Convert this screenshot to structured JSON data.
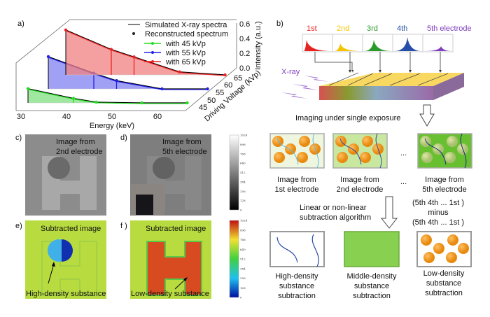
{
  "panel_labels": {
    "a": "a)",
    "b": "b)",
    "c": "c)",
    "d": "d)",
    "e": "e)",
    "f": "f )"
  },
  "chart_data": {
    "type": "line",
    "xlabel": "Energy (keV)",
    "ylabel": "Intensity (a.u.)",
    "zlabel": "Driving Voltage (kVp)",
    "x_ticks": [
      "30",
      "40",
      "50",
      "60"
    ],
    "y_ticks": [
      "0.0",
      "0.2",
      "0.4",
      "0.6"
    ],
    "z_ticks": [
      "45",
      "50",
      "55",
      "60",
      "65"
    ],
    "xlim": [
      30,
      65
    ],
    "ylim": [
      0,
      0.6
    ],
    "legend": {
      "placement": "top-right",
      "entries": [
        "Simulated X-ray spectra",
        "Reconstructed spectrum",
        "with 45 kVp",
        "with 55 kVp",
        "with 65 kVp"
      ]
    },
    "series": [
      {
        "name": "with 45 kVp",
        "color": "#22dd22",
        "x": [
          32,
          42,
          47,
          57,
          67
        ],
        "y": [
          0.19,
          0.06,
          0.01,
          0.0,
          0.0
        ]
      },
      {
        "name": "with 55 kVp",
        "color": "#2222ee",
        "x": [
          32,
          42,
          47,
          57,
          67
        ],
        "y": [
          0.43,
          0.21,
          0.11,
          0.0,
          0.0
        ]
      },
      {
        "name": "with 65 kVp",
        "color": "#ee2222",
        "x": [
          32,
          42,
          47,
          57,
          67
        ],
        "y": [
          0.6,
          0.34,
          0.24,
          0.04,
          0.0
        ]
      }
    ]
  },
  "b": {
    "electrodes": [
      {
        "label": "1st",
        "color": "#e8221f"
      },
      {
        "label": "2nd",
        "color": "#f5c400"
      },
      {
        "label": "3rd",
        "color": "#2a9a2a"
      },
      {
        "label": "4th",
        "color": "#2650a8"
      },
      {
        "label": "5th electrode",
        "color": "#8040c0"
      }
    ],
    "xray": "X-ray",
    "imaging": "Imaging under single exposure",
    "row1": [
      {
        "l1": "Image from",
        "l2": "1st electrode"
      },
      {
        "l1": "Image from",
        "l2": "2nd electrode"
      },
      {
        "l1": "Image from",
        "l2": "5th electrode"
      }
    ],
    "ellipsis": "...",
    "algo1": "Linear or non-linear",
    "algo2": "subtraction algorithm",
    "formula": [
      "(5th 4th ... 1st )",
      "minus",
      "(5th 4th ... 1st )"
    ],
    "row2": [
      {
        "l1": "High-density",
        "l2": "substance",
        "l3": "subtraction"
      },
      {
        "l1": "Middle-density",
        "l2": "substance",
        "l3": "subtraction"
      },
      {
        "l1": "Low-density",
        "l2": "substance",
        "l3": "subtraction"
      }
    ]
  },
  "c": {
    "l1": "Image from",
    "l2": "2nd electrode"
  },
  "d": {
    "l1": "Image from",
    "l2": "5th electrode"
  },
  "e": {
    "title": "Subtracted image",
    "note": "High-density substance"
  },
  "f": {
    "title": "Subtracted image",
    "note": "Low-density substance"
  },
  "colorbar_ticks": [
    "0",
    "128",
    "256",
    "384",
    "512",
    "640",
    "768",
    "896",
    "1024"
  ]
}
